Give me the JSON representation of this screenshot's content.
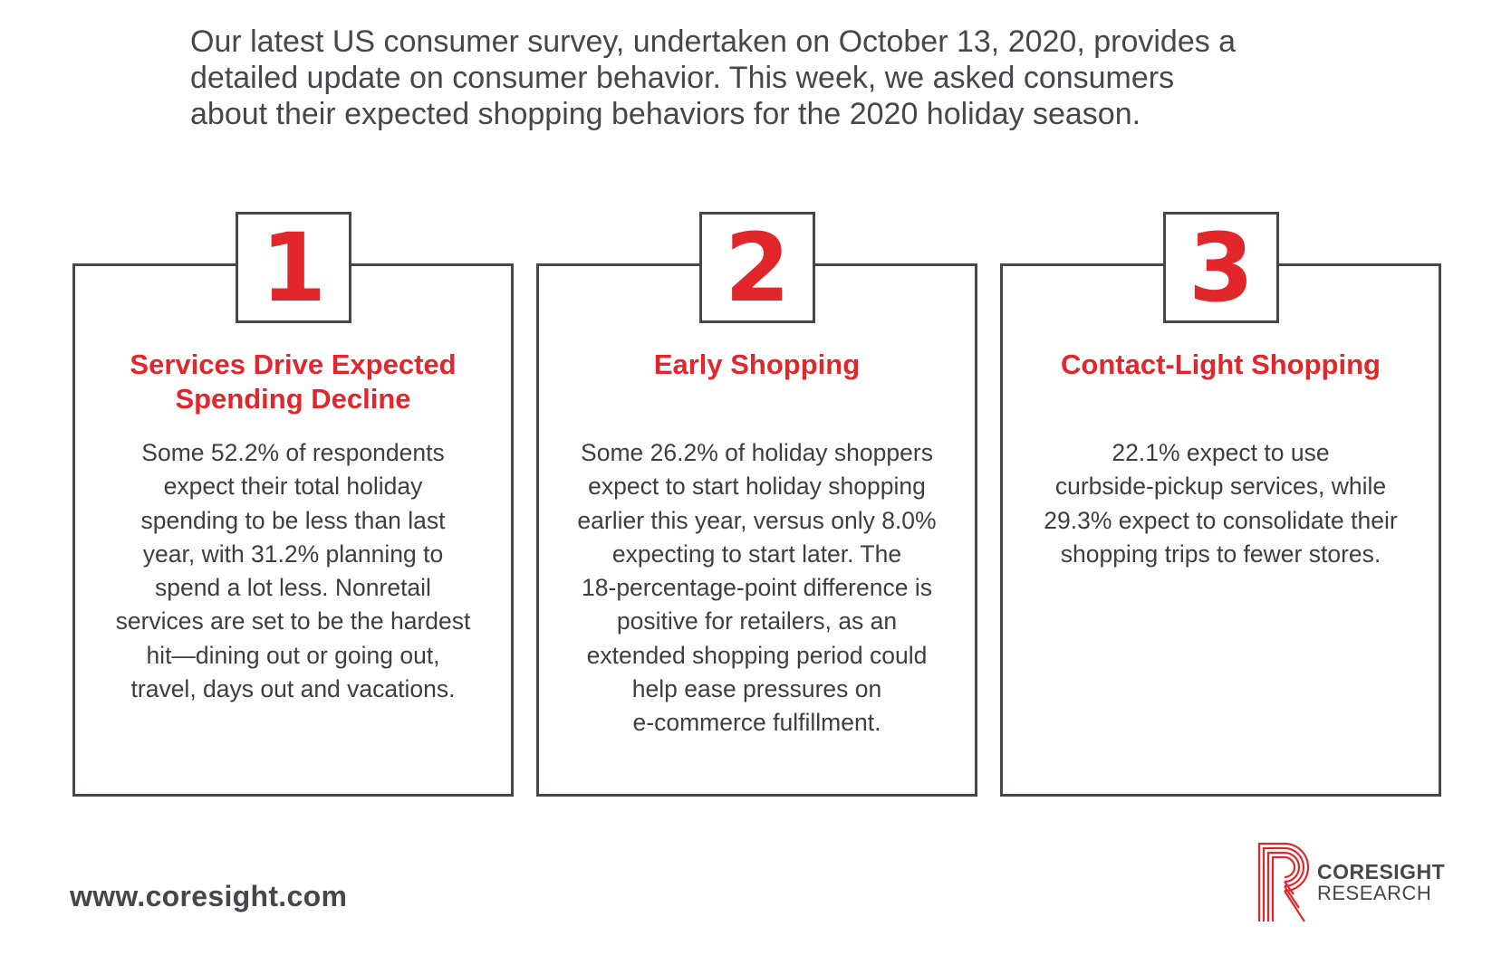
{
  "intro": {
    "line1": "Our latest US consumer survey, undertaken on October 13, 2020, provides a",
    "line2": "detailed update on consumer behavior. This week, we asked consumers",
    "line3": "about their expected shopping behaviors for the 2020 holiday season."
  },
  "cards": [
    {
      "number": "1",
      "title_lines": [
        "Services Drive Expected",
        "Spending Decline"
      ],
      "body_lines": [
        "Some 52.2% of respondents",
        "expect their total holiday",
        "spending to be less than last",
        "year, with 31.2% planning to",
        "spend a lot less. Nonretail",
        "services are set to be the hardest",
        "hit—dining out or going out,",
        "travel, days out and vacations."
      ]
    },
    {
      "number": "2",
      "title_lines": [
        "Early Shopping"
      ],
      "body_lines": [
        "Some 26.2% of holiday shoppers",
        "expect to start holiday shopping",
        "earlier this year, versus only 8.0%",
        "expecting to start later. The",
        "18-percentage-point difference is",
        "positive for retailers, as an",
        "extended shopping period could",
        "help ease pressures on",
        "e-commerce fulfillment."
      ]
    },
    {
      "number": "3",
      "title_lines": [
        "Contact-Light Shopping"
      ],
      "body_lines": [
        "22.1% expect to use",
        "curbside-pickup services, while",
        "29.3% expect to consolidate their",
        "shopping trips to fewer stores."
      ]
    }
  ],
  "footer": {
    "url": "www.coresight.com",
    "logo_name": "CORESIGHT",
    "logo_sub": "RESEARCH"
  },
  "colors": {
    "accent": "#e1262c",
    "text": "#3f3d43",
    "border": "#48464c"
  }
}
